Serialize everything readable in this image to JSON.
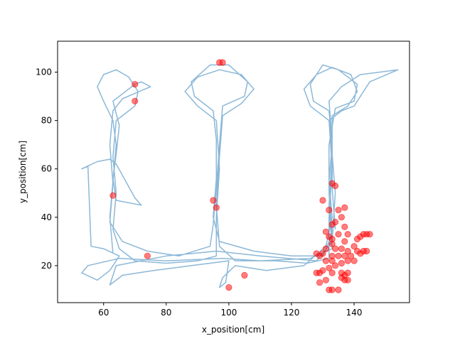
{
  "chart_data": {
    "type": "scatter",
    "xlabel": "x_position[cm]",
    "ylabel": "y_position[cm]",
    "xlim": [
      45.3,
      157.7
    ],
    "ylim": [
      4.7,
      112.8
    ],
    "x_ticks": [
      60,
      80,
      100,
      120,
      140
    ],
    "y_ticks": [
      20,
      40,
      60,
      80,
      100
    ],
    "grid": false,
    "colors": {
      "trajectory": "#8cb8d8",
      "events": "#ff0000"
    },
    "series": [
      {
        "kind": "line",
        "points": [
          [
            63,
            25
          ],
          [
            62,
            40
          ],
          [
            63,
            55
          ],
          [
            64,
            70
          ],
          [
            63,
            80
          ],
          [
            60,
            88
          ],
          [
            58,
            94
          ],
          [
            60,
            99
          ],
          [
            64,
            101
          ],
          [
            68,
            98
          ],
          [
            71,
            92
          ],
          [
            70,
            86
          ],
          [
            66,
            82
          ],
          [
            64,
            80
          ],
          [
            63,
            65
          ],
          [
            64,
            50
          ],
          [
            63,
            35
          ],
          [
            65,
            27
          ],
          [
            70,
            22
          ],
          [
            80,
            21
          ],
          [
            90,
            22
          ],
          [
            96,
            24
          ],
          [
            96,
            40
          ],
          [
            97,
            60
          ],
          [
            96,
            80
          ],
          [
            90,
            86
          ],
          [
            86,
            92
          ],
          [
            90,
            98
          ],
          [
            97,
            101
          ],
          [
            104,
            99
          ],
          [
            108,
            93
          ],
          [
            104,
            87
          ],
          [
            98,
            82
          ],
          [
            97,
            65
          ],
          [
            96,
            45
          ],
          [
            97,
            28
          ],
          [
            102,
            22
          ],
          [
            115,
            22
          ],
          [
            125,
            21
          ],
          [
            132,
            23
          ],
          [
            132,
            40
          ],
          [
            133,
            60
          ],
          [
            132,
            80
          ],
          [
            126,
            86
          ],
          [
            124,
            93
          ],
          [
            128,
            99
          ],
          [
            133,
            102
          ],
          [
            139,
            99
          ],
          [
            141,
            92
          ],
          [
            138,
            86
          ],
          [
            133,
            82
          ],
          [
            133,
            65
          ],
          [
            132,
            45
          ],
          [
            133,
            27
          ],
          [
            126,
            23
          ],
          [
            110,
            22
          ],
          [
            98,
            23
          ],
          [
            80,
            22
          ],
          [
            65,
            23
          ],
          [
            55,
            20
          ],
          [
            53,
            17
          ],
          [
            58,
            14
          ],
          [
            62,
            18
          ],
          [
            65,
            24
          ],
          [
            60,
            27
          ],
          [
            56,
            28
          ],
          [
            55,
            61
          ],
          [
            53,
            60
          ],
          [
            58,
            63
          ],
          [
            62,
            64
          ],
          [
            64,
            62
          ],
          [
            70,
            48
          ],
          [
            72,
            45
          ],
          [
            64,
            47
          ],
          [
            63,
            56
          ],
          [
            64,
            66
          ],
          [
            65,
            78
          ],
          [
            63,
            88
          ],
          [
            70,
            95
          ],
          [
            72,
            96
          ],
          [
            75,
            94
          ],
          [
            66,
            89
          ],
          [
            63,
            84
          ],
          [
            62,
            70
          ],
          [
            63,
            54
          ],
          [
            62,
            38
          ],
          [
            66,
            30
          ],
          [
            74,
            26
          ],
          [
            84,
            24
          ],
          [
            94,
            28
          ],
          [
            95,
            37
          ],
          [
            96,
            52
          ],
          [
            97,
            70
          ],
          [
            98,
            86
          ],
          [
            105,
            90
          ],
          [
            106,
            96
          ],
          [
            100,
            103
          ],
          [
            94,
            103
          ],
          [
            88,
            96
          ],
          [
            89,
            90
          ],
          [
            95,
            84
          ],
          [
            96,
            72
          ],
          [
            96,
            56
          ],
          [
            95,
            40
          ],
          [
            97,
            30
          ],
          [
            108,
            26
          ],
          [
            120,
            24
          ],
          [
            130,
            24
          ],
          [
            133,
            33
          ],
          [
            132,
            50
          ],
          [
            132,
            70
          ],
          [
            134,
            85
          ],
          [
            140,
            88
          ],
          [
            141,
            95
          ],
          [
            135,
            101
          ],
          [
            130,
            103
          ],
          [
            126,
            95
          ],
          [
            127,
            88
          ],
          [
            132,
            84
          ],
          [
            133,
            70
          ],
          [
            132,
            55
          ],
          [
            133,
            40
          ],
          [
            131,
            28
          ],
          [
            124,
            20
          ],
          [
            112,
            18
          ],
          [
            102,
            20
          ],
          [
            98,
            15
          ],
          [
            97,
            11
          ],
          [
            99,
            13
          ],
          [
            100,
            22
          ],
          [
            88,
            20
          ],
          [
            76,
            18
          ],
          [
            66,
            16
          ],
          [
            62,
            12
          ],
          [
            64,
            20
          ],
          [
            80,
            24
          ],
          [
            96,
            26
          ],
          [
            110,
            24
          ],
          [
            128,
            22
          ],
          [
            133,
            30
          ],
          [
            134,
            50
          ],
          [
            133,
            66
          ],
          [
            132,
            80
          ],
          [
            136,
            84
          ],
          [
            140,
            86
          ],
          [
            145,
            96
          ],
          [
            154,
            101
          ],
          [
            142,
            99
          ],
          [
            136,
            94
          ],
          [
            132,
            88
          ],
          [
            133,
            72
          ],
          [
            133,
            52
          ],
          [
            134,
            35
          ]
        ]
      },
      {
        "kind": "scatter",
        "points": [
          [
            97,
            104
          ],
          [
            98,
            104
          ],
          [
            70,
            95
          ],
          [
            70,
            88
          ],
          [
            63,
            49
          ],
          [
            95,
            47
          ],
          [
            96,
            44
          ],
          [
            74,
            24
          ],
          [
            105,
            16
          ],
          [
            100,
            11
          ],
          [
            133,
            54
          ],
          [
            134,
            53
          ],
          [
            130,
            47
          ],
          [
            132,
            43
          ],
          [
            135,
            43
          ],
          [
            137,
            44
          ],
          [
            136,
            40
          ],
          [
            134,
            38
          ],
          [
            133,
            37
          ],
          [
            137,
            36
          ],
          [
            131,
            34
          ],
          [
            132,
            32
          ],
          [
            133,
            31
          ],
          [
            135,
            33
          ],
          [
            138,
            33
          ],
          [
            137,
            30
          ],
          [
            133,
            29
          ],
          [
            131,
            27
          ],
          [
            134,
            27
          ],
          [
            136,
            27
          ],
          [
            140,
            28
          ],
          [
            141,
            31
          ],
          [
            142,
            32
          ],
          [
            143,
            33
          ],
          [
            144,
            33
          ],
          [
            145,
            33
          ],
          [
            138,
            26
          ],
          [
            141,
            26
          ],
          [
            143,
            26
          ],
          [
            144,
            26
          ],
          [
            142,
            25
          ],
          [
            139,
            24
          ],
          [
            137,
            24
          ],
          [
            135,
            24
          ],
          [
            133,
            24
          ],
          [
            130,
            25
          ],
          [
            128,
            25
          ],
          [
            129,
            24
          ],
          [
            131,
            22
          ],
          [
            133,
            22
          ],
          [
            136,
            21
          ],
          [
            138,
            22
          ],
          [
            140,
            22
          ],
          [
            134,
            20
          ],
          [
            132,
            19
          ],
          [
            130,
            18
          ],
          [
            129,
            17
          ],
          [
            128,
            17
          ],
          [
            133,
            17
          ],
          [
            136,
            17
          ],
          [
            138,
            17
          ],
          [
            137,
            16
          ],
          [
            136,
            15
          ],
          [
            138,
            14
          ],
          [
            137,
            14
          ],
          [
            131,
            14
          ],
          [
            129,
            13
          ],
          [
            132,
            10
          ],
          [
            133,
            10
          ],
          [
            135,
            10
          ]
        ]
      }
    ]
  }
}
